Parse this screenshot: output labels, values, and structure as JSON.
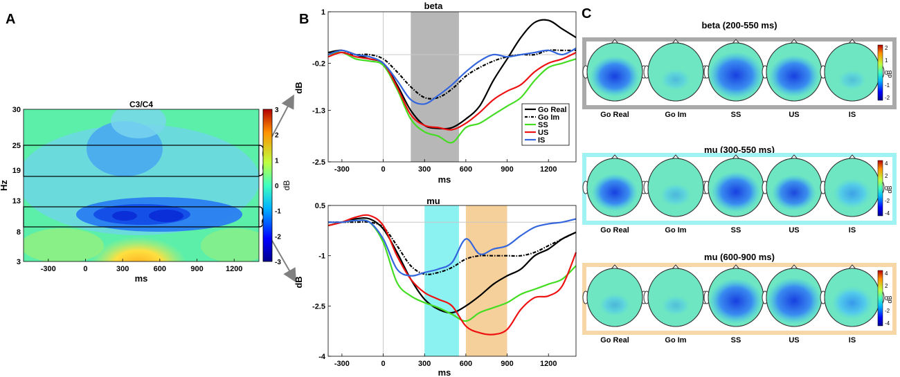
{
  "panel_letters": {
    "a": "A",
    "b": "B",
    "c": "C"
  },
  "colors": {
    "go_real": "#000000",
    "go_im": "#000000",
    "ss": "#44dd22",
    "us": "#ee1111",
    "is": "#3366dd",
    "beta_window": "#aaaaaa",
    "mu_early_window": "#77eeee",
    "mu_late_window": "#f5c88a",
    "beta_frame": "#aaaaaa",
    "mu_early_frame": "#9ff3f3",
    "mu_late_frame": "#f7d6a8"
  },
  "chart_data": [
    {
      "id": "A",
      "type": "heatmap",
      "title": "C3/C4",
      "xlabel": "ms",
      "ylabel": "Hz",
      "xlim": [
        -500,
        1400
      ],
      "x_ticks": [
        -300,
        0,
        300,
        600,
        900,
        1200
      ],
      "y_ticks": [
        3,
        8,
        13,
        19,
        25,
        30
      ],
      "colorbar": {
        "label": "dB",
        "range": [
          -3,
          3
        ],
        "ticks": [
          3,
          2,
          1,
          0,
          -1,
          -2,
          -3
        ]
      },
      "bands": [
        {
          "name": "beta",
          "hz": [
            19,
            25
          ]
        },
        {
          "name": "mu",
          "hz": [
            8,
            13
          ]
        }
      ],
      "features": [
        {
          "desc": "desynchronization",
          "ms": [
            250,
            1000
          ],
          "hz": [
            8,
            13
          ],
          "db": -2.5
        },
        {
          "desc": "desynchronization",
          "ms": [
            200,
            500
          ],
          "hz": [
            17,
            26
          ],
          "db": -1.5
        },
        {
          "desc": "synchronization",
          "ms": [
            300,
            700
          ],
          "hz": [
            3,
            5
          ],
          "db": 2.5
        }
      ]
    },
    {
      "id": "B-beta",
      "type": "line",
      "title": "beta",
      "xlabel": "ms",
      "ylabel": "dB",
      "xlim": [
        -400,
        1400
      ],
      "ylim": [
        -2.5,
        1
      ],
      "x_ticks": [
        -300,
        0,
        300,
        600,
        900,
        1200
      ],
      "y_ticks": [
        1,
        -0.2,
        -1.3,
        -2.5
      ],
      "highlight": {
        "ms": [
          200,
          550
        ]
      },
      "legend": [
        "Go Real",
        "Go Im",
        "SS",
        "US",
        "IS"
      ],
      "x": [
        -400,
        -300,
        -200,
        -100,
        0,
        100,
        200,
        300,
        400,
        500,
        600,
        700,
        800,
        900,
        1000,
        1100,
        1200,
        1300,
        1400
      ],
      "series": [
        {
          "name": "Go Real",
          "values": [
            0.05,
            0.1,
            0.0,
            -0.1,
            -0.2,
            -0.7,
            -1.3,
            -1.65,
            -1.72,
            -1.7,
            -1.5,
            -1.2,
            -0.6,
            -0.1,
            0.4,
            0.75,
            0.8,
            0.6,
            0.4
          ]
        },
        {
          "name": "Go Im",
          "values": [
            0.05,
            0.05,
            0.0,
            0.0,
            -0.1,
            -0.4,
            -0.75,
            -1.0,
            -1.0,
            -0.8,
            -0.5,
            -0.3,
            -0.15,
            -0.05,
            0.0,
            0.0,
            0.1,
            0.1,
            0.1
          ]
        },
        {
          "name": "SS",
          "values": [
            0.0,
            0.05,
            -0.1,
            -0.15,
            -0.25,
            -0.8,
            -1.5,
            -1.8,
            -1.9,
            -2.05,
            -1.7,
            -1.6,
            -1.4,
            -1.2,
            -1.0,
            -0.6,
            -0.3,
            -0.2,
            -0.1
          ]
        },
        {
          "name": "US",
          "values": [
            -0.05,
            0.05,
            -0.05,
            -0.1,
            -0.2,
            -0.75,
            -1.4,
            -1.65,
            -1.7,
            -1.75,
            -1.6,
            -1.35,
            -1.05,
            -0.85,
            -0.7,
            -0.4,
            -0.2,
            -0.1,
            0.05
          ]
        },
        {
          "name": "IS",
          "values": [
            0.0,
            0.1,
            0.0,
            -0.05,
            -0.2,
            -0.6,
            -1.05,
            -1.15,
            -0.95,
            -0.7,
            -0.4,
            -0.15,
            0.0,
            -0.05,
            0.0,
            0.05,
            0.1,
            0.0,
            0.15
          ]
        }
      ]
    },
    {
      "id": "B-mu",
      "type": "line",
      "title": "mu",
      "xlabel": "ms",
      "ylabel": "dB",
      "xlim": [
        -400,
        1400
      ],
      "ylim": [
        -4,
        0.5
      ],
      "x_ticks": [
        -300,
        0,
        300,
        600,
        900,
        1200
      ],
      "y_ticks": [
        0.5,
        -1,
        -2.5,
        -4
      ],
      "highlights": [
        {
          "ms": [
            300,
            550
          ]
        },
        {
          "ms": [
            600,
            900
          ]
        }
      ],
      "x": [
        -400,
        -300,
        -200,
        -100,
        0,
        100,
        200,
        300,
        400,
        500,
        600,
        700,
        800,
        900,
        1000,
        1100,
        1200,
        1300,
        1400
      ],
      "series": [
        {
          "name": "Go Real",
          "values": [
            -0.1,
            0.0,
            0.1,
            0.1,
            -0.2,
            -0.9,
            -1.7,
            -2.3,
            -2.6,
            -2.7,
            -2.5,
            -2.2,
            -1.85,
            -1.6,
            -1.4,
            -1.0,
            -0.8,
            -0.5,
            -0.3
          ]
        },
        {
          "name": "Go Im",
          "values": [
            0.0,
            0.0,
            0.0,
            0.0,
            -0.15,
            -0.7,
            -1.3,
            -1.55,
            -1.5,
            -1.35,
            -1.1,
            -1.0,
            -1.0,
            -1.0,
            -1.0,
            -0.9,
            -0.7,
            -0.5,
            -0.3
          ]
        },
        {
          "name": "SS",
          "values": [
            -0.1,
            0.0,
            0.05,
            0.0,
            -0.6,
            -1.8,
            -2.2,
            -2.4,
            -2.55,
            -2.75,
            -2.95,
            -2.7,
            -2.55,
            -2.4,
            -2.15,
            -2.0,
            -1.85,
            -1.7,
            -1.3
          ]
        },
        {
          "name": "US",
          "values": [
            -0.1,
            0.0,
            0.15,
            0.2,
            -0.1,
            -1.0,
            -1.7,
            -2.1,
            -2.3,
            -2.5,
            -3.1,
            -3.3,
            -3.35,
            -3.2,
            -2.6,
            -2.25,
            -2.2,
            -1.9,
            -0.9
          ]
        },
        {
          "name": "IS",
          "values": [
            0.0,
            0.0,
            0.05,
            0.0,
            -0.5,
            -1.4,
            -1.6,
            -1.5,
            -1.4,
            -1.2,
            -0.5,
            -0.95,
            -0.8,
            -0.7,
            -0.4,
            -0.15,
            -0.05,
            0.0,
            0.1
          ]
        }
      ]
    },
    {
      "id": "C",
      "type": "topoplot",
      "rows": [
        {
          "title": "beta (200-550 ms)",
          "colorbar_ticks": [
            "2",
            "1",
            "0",
            "-1",
            "-2"
          ],
          "colorbar_label": "dB"
        },
        {
          "title": "mu (300-550 ms)",
          "colorbar_ticks": [
            "4",
            "2",
            "0",
            "-2",
            "-4"
          ],
          "colorbar_label": "dB"
        },
        {
          "title": "mu (600-900 ms)",
          "colorbar_ticks": [
            "4",
            "2",
            "0",
            "-2",
            "-4"
          ],
          "colorbar_label": "dB"
        }
      ],
      "conditions": [
        "Go Real",
        "Go Im",
        "SS",
        "US",
        "IS"
      ],
      "desync_levels": [
        [
          0.7,
          0.1,
          0.9,
          0.75,
          0.05
        ],
        [
          0.6,
          0.15,
          0.7,
          0.55,
          0.4
        ],
        [
          0.15,
          0.05,
          0.85,
          0.9,
          0.5
        ]
      ]
    }
  ]
}
